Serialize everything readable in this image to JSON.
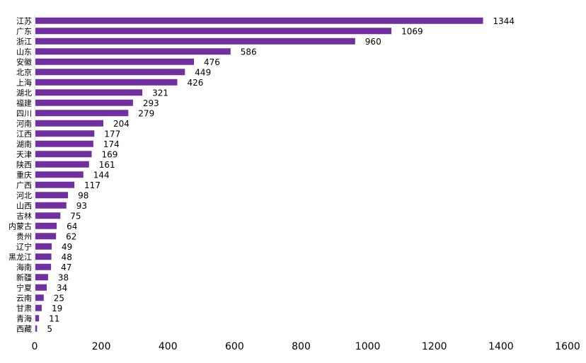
{
  "chart_data": {
    "type": "bar",
    "orientation": "horizontal",
    "title": "",
    "xlabel": "",
    "ylabel": "",
    "color": "#7030a0",
    "xlim": [
      0,
      1600
    ],
    "xticks": [
      0,
      200,
      400,
      600,
      800,
      1000,
      1200,
      1400,
      1600
    ],
    "grid": false,
    "legend": "none",
    "categories": [
      "江苏",
      "广东",
      "浙江",
      "山东",
      "安徽",
      "北京",
      "上海",
      "湖北",
      "福建",
      "四川",
      "河南",
      "江西",
      "湖南",
      "天津",
      "陕西",
      "重庆",
      "广西",
      "河北",
      "山西",
      "吉林",
      "内蒙古",
      "贵州",
      "辽宁",
      "黑龙江",
      "海南",
      "新疆",
      "宁夏",
      "云南",
      "甘肃",
      "青海",
      "西藏"
    ],
    "values": [
      1344,
      1069,
      960,
      586,
      476,
      449,
      426,
      321,
      293,
      279,
      204,
      177,
      174,
      169,
      161,
      144,
      117,
      98,
      93,
      75,
      64,
      62,
      49,
      48,
      47,
      38,
      34,
      25,
      19,
      11,
      5
    ]
  }
}
